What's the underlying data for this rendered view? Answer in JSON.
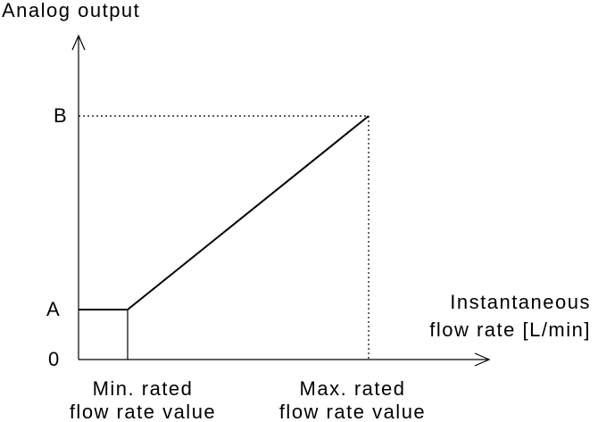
{
  "y_axis": {
    "title": "Analog output",
    "labels": [
      "B",
      "A",
      "0"
    ]
  },
  "x_axis": {
    "title_lines": [
      "Instantaneous",
      "flow rate [L/min]"
    ],
    "labels": [
      {
        "lines": [
          "Min. rated",
          "flow rate value"
        ]
      },
      {
        "lines": [
          "Max. rated",
          "flow rate value"
        ]
      }
    ]
  }
}
